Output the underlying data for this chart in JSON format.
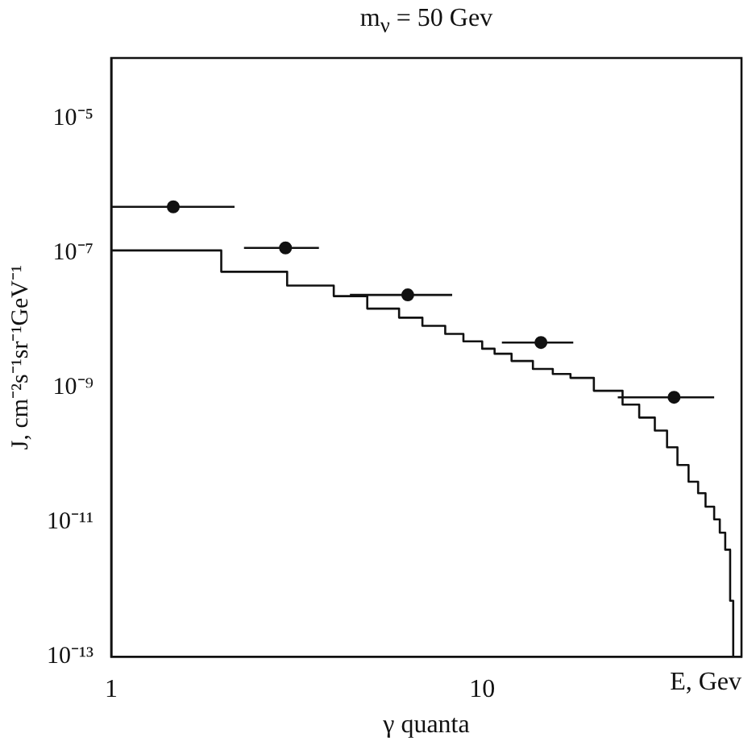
{
  "chart_data": {
    "type": "step",
    "title": "m$_{ν}$ = 50 Gev",
    "xlabel": "γ quanta",
    "ylabel": "J, cm⁻²s⁻¹sr⁻¹GeV⁻¹",
    "annotations": [
      "E, Gev"
    ],
    "log": "xy",
    "grid": false,
    "legend": false,
    "xlim": [
      1,
      50
    ],
    "xticks": [
      1,
      10
    ],
    "ylim": [
      1e-13,
      8e-05
    ],
    "yticks": [
      {
        "value": 1e-05,
        "label": "10⁻⁵"
      },
      {
        "value": 1e-07,
        "label": "10⁻⁷"
      },
      {
        "value": 1e-09,
        "label": "10⁻⁹"
      },
      {
        "value": 1e-11,
        "label": "10⁻¹¹"
      },
      {
        "value": 1e-13,
        "label": "10⁻¹³"
      }
    ],
    "series": [
      {
        "color": "#111111",
        "x": [
          1,
          1.98,
          2.98,
          3.98,
          4.9,
          5.97,
          6.9,
          7.95,
          8.9,
          10,
          10.8,
          12,
          13.7,
          15.5,
          17.3,
          20,
          23.9,
          26.5,
          29.2,
          31.5,
          33.6,
          36,
          38.2,
          40,
          42.2,
          43.7,
          45.2,
          46.6,
          47.5
        ],
        "values": [
          1.1e-07,
          5.3e-08,
          3.3e-08,
          2.3e-08,
          1.5e-08,
          1.1e-08,
          8.3e-09,
          6.3e-09,
          4.9e-09,
          3.8e-09,
          3.2e-09,
          2.5e-09,
          1.9e-09,
          1.6e-09,
          1.4e-09,
          9e-10,
          5.6e-10,
          3.6e-10,
          2.3e-10,
          1.3e-10,
          7.1e-11,
          4e-11,
          2.7e-11,
          1.7e-11,
          1.1e-11,
          7e-12,
          3.9e-12,
          6.8e-13,
          1e-13
        ]
      },
      {
        "type": "scatter",
        "color": "#111111",
        "marker": "circle",
        "x": [
          1.47,
          2.95,
          6.3,
          14.4,
          32.9
        ],
        "values": [
          4.9e-07,
          1.2e-07,
          2.4e-08,
          4.7e-09,
          7.2e-10
        ],
        "xerrors": [
          [
            1,
            2.15
          ],
          [
            2.28,
            3.63
          ],
          [
            4.4,
            8.3
          ],
          [
            11.3,
            17.6
          ],
          [
            23.2,
            42.2
          ]
        ]
      }
    ]
  }
}
